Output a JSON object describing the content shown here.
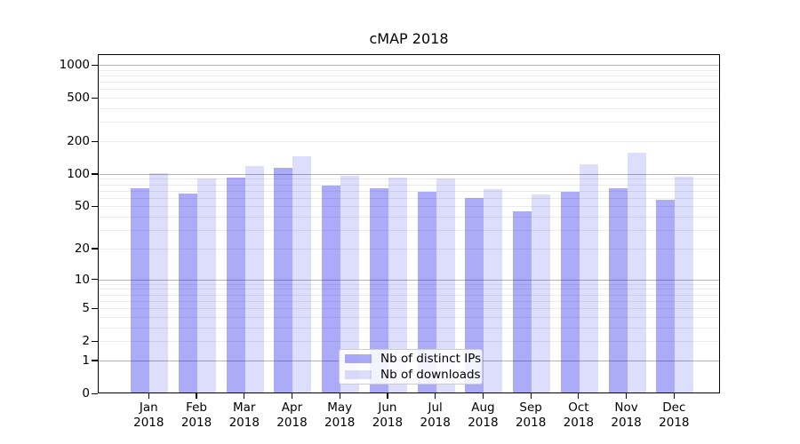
{
  "chart_data": {
    "type": "bar",
    "title": "cMAP 2018",
    "categories": [
      "Jan 2018",
      "Feb 2018",
      "Mar 2018",
      "Apr 2018",
      "May 2018",
      "Jun 2018",
      "Jul 2018",
      "Aug 2018",
      "Sep 2018",
      "Oct 2018",
      "Nov 2018",
      "Dec 2018"
    ],
    "series": [
      {
        "name": "Nb of distinct IPs",
        "color": "rgba(13,13,235,0.345)",
        "values": [
          74,
          66,
          92,
          113,
          78,
          74,
          68,
          60,
          45,
          68,
          74,
          58
        ]
      },
      {
        "name": "Nb of downloads",
        "color": "rgba(13,13,235,0.14)",
        "values": [
          102,
          90,
          118,
          145,
          96,
          92,
          90,
          73,
          64,
          123,
          158,
          95
        ]
      }
    ],
    "yscale": "log1p",
    "yticks": [
      0,
      1,
      2,
      5,
      10,
      20,
      50,
      100,
      200,
      500,
      1000
    ],
    "ylim": [
      0,
      1200
    ],
    "xlabel": "",
    "ylabel": "",
    "grid": true,
    "legend_position": "lower center",
    "colors": {
      "major_grid": "#b3b3b3",
      "minor_grid": "#ebebeb",
      "spine": "#000000",
      "background": "#ffffff"
    }
  }
}
